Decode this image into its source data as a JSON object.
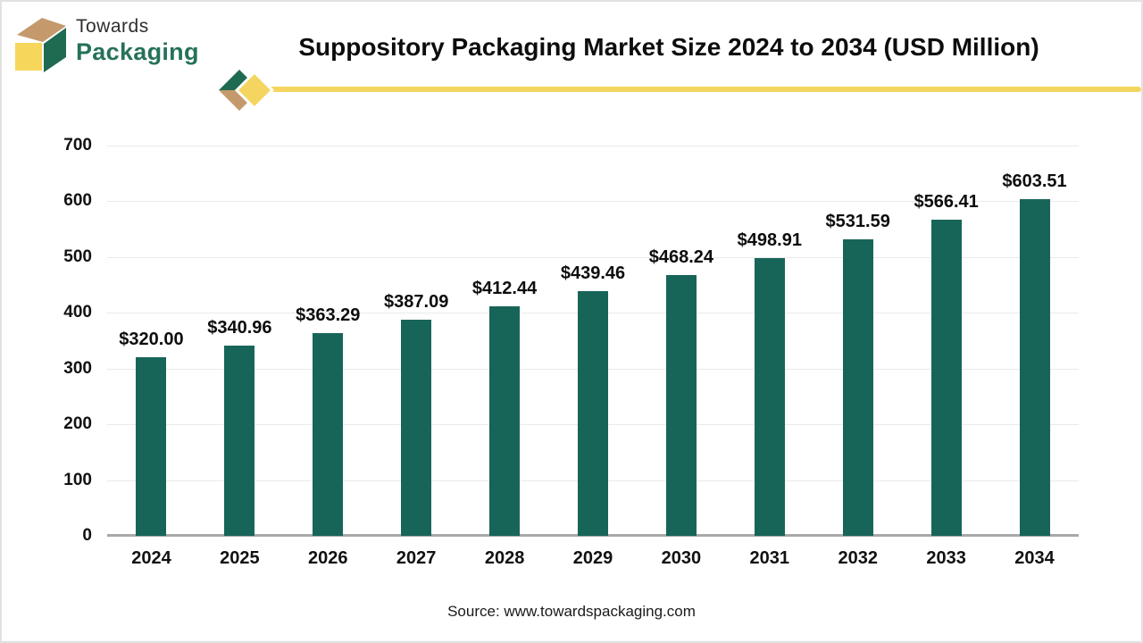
{
  "logo": {
    "line1": "Towards",
    "line2": "Packaging"
  },
  "header": {
    "title": "Suppository Packaging Market Size 2024 to 2034 (USD Million)"
  },
  "footer": {
    "source": "Source: www.towardspackaging.com"
  },
  "colors": {
    "bar": "#176558",
    "accent_yellow": "#f5d55f",
    "logo_green": "#1f6b52",
    "logo_tan": "#c49a6c",
    "logo_yellow": "#f7d65c",
    "gridline": "#eaeaea",
    "axis_line": "#a8a8a8"
  },
  "chart_data": {
    "type": "bar",
    "title": "Suppository Packaging Market Size 2024 to 2034 (USD Million)",
    "categories": [
      "2024",
      "2025",
      "2026",
      "2027",
      "2028",
      "2029",
      "2030",
      "2031",
      "2032",
      "2033",
      "2034"
    ],
    "values": [
      320.0,
      340.96,
      363.29,
      387.09,
      412.44,
      439.46,
      468.24,
      498.91,
      531.59,
      566.41,
      603.51
    ],
    "value_prefix": "$",
    "xlabel": "",
    "ylabel": "",
    "ylim": [
      0,
      700
    ],
    "yticks": [
      0,
      100,
      200,
      300,
      400,
      500,
      600,
      700
    ],
    "grid": true,
    "legend": false,
    "bar_color": "#176558"
  }
}
